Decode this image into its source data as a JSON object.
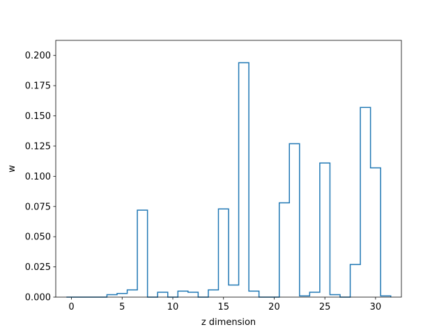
{
  "chart_data": {
    "type": "bar",
    "style": "step-histogram",
    "title": "",
    "xlabel": "z dimension",
    "ylabel": "w",
    "xlim": [
      -1.55,
      32.55
    ],
    "ylim": [
      0,
      0.2125
    ],
    "grid": false,
    "line_color": "#1f77b4",
    "bin_edges": [
      -0.5,
      0.5,
      1.5,
      2.5,
      3.5,
      4.5,
      5.5,
      6.5,
      7.5,
      8.5,
      9.5,
      10.5,
      11.5,
      12.5,
      13.5,
      14.5,
      15.5,
      16.5,
      17.5,
      18.5,
      19.5,
      20.5,
      21.5,
      22.5,
      23.5,
      24.5,
      25.5,
      26.5,
      27.5,
      28.5,
      29.5,
      30.5,
      31.5
    ],
    "categories": [
      "0",
      "1",
      "2",
      "3",
      "4",
      "5",
      "6",
      "7",
      "8",
      "9",
      "10",
      "11",
      "12",
      "13",
      "14",
      "15",
      "16",
      "17",
      "18",
      "19",
      "20",
      "21",
      "22",
      "23",
      "24",
      "25",
      "26",
      "27",
      "28",
      "29",
      "30",
      "31"
    ],
    "values": [
      0.0,
      0.0,
      0.0,
      0.0,
      0.002,
      0.003,
      0.006,
      0.072,
      0.0,
      0.004,
      0.0,
      0.005,
      0.004,
      0.0,
      0.006,
      0.073,
      0.01,
      0.194,
      0.005,
      0.0,
      0.0,
      0.078,
      0.127,
      0.001,
      0.004,
      0.111,
      0.002,
      0.0,
      0.027,
      0.157,
      0.107,
      0.001
    ],
    "x_ticks": [
      {
        "value": 0,
        "label": "0"
      },
      {
        "value": 5,
        "label": "5"
      },
      {
        "value": 10,
        "label": "10"
      },
      {
        "value": 15,
        "label": "15"
      },
      {
        "value": 20,
        "label": "20"
      },
      {
        "value": 25,
        "label": "25"
      },
      {
        "value": 30,
        "label": "30"
      }
    ],
    "y_ticks": [
      {
        "value": 0.0,
        "label": "0.000"
      },
      {
        "value": 0.025,
        "label": "0.025"
      },
      {
        "value": 0.05,
        "label": "0.050"
      },
      {
        "value": 0.075,
        "label": "0.075"
      },
      {
        "value": 0.1,
        "label": "0.100"
      },
      {
        "value": 0.125,
        "label": "0.125"
      },
      {
        "value": 0.15,
        "label": "0.150"
      },
      {
        "value": 0.175,
        "label": "0.175"
      },
      {
        "value": 0.2,
        "label": "0.200"
      }
    ]
  }
}
